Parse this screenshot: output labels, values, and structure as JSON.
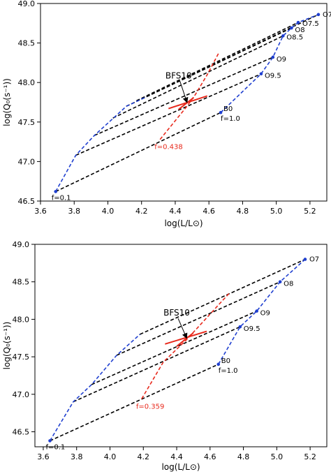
{
  "colors": {
    "blue_track": "#1f3fd0",
    "red_track": "#e8291c",
    "black_lines": "#000000",
    "red_label": "#e8291c"
  },
  "chart_data": [
    {
      "type": "line",
      "panel": "top",
      "xlabel": "log(L/L⊙)",
      "ylabel": "log(Q₀(s⁻¹))",
      "xlim": [
        3.6,
        5.3
      ],
      "ylim": [
        46.5,
        49.0
      ],
      "xticks": [
        "3.6",
        "3.8",
        "4.0",
        "4.2",
        "4.4",
        "4.6",
        "4.8",
        "5.0",
        "5.2"
      ],
      "yticks": [
        "46.5",
        "47.0",
        "47.5",
        "48.0",
        "48.5",
        "49.0"
      ],
      "series": [
        {
          "role": "f1_track",
          "color": "#1f3fd0",
          "points": [
            [
              4.67,
              47.62
            ],
            [
              4.91,
              48.11
            ],
            [
              4.98,
              48.32
            ],
            [
              5.04,
              48.59
            ],
            [
              5.09,
              48.69
            ],
            [
              5.13,
              48.76
            ],
            [
              5.25,
              48.86
            ]
          ]
        },
        {
          "role": "f01_track",
          "color": "#1f3fd0",
          "points": [
            [
              3.69,
              46.62
            ],
            [
              3.81,
              47.08
            ],
            [
              3.92,
              47.33
            ],
            [
              4.11,
              47.7
            ],
            [
              4.23,
              47.82
            ]
          ]
        },
        {
          "role": "f_best_track",
          "color": "#e8291c",
          "points": [
            [
              4.31,
              47.28
            ],
            [
              4.47,
              47.7
            ],
            [
              4.52,
              47.85
            ],
            [
              4.59,
              48.1
            ],
            [
              4.66,
              48.38
            ]
          ]
        },
        {
          "role": "iso_lines",
          "color": "#000000",
          "segments": [
            [
              [
                3.69,
                46.62
              ],
              [
                4.67,
                47.62
              ]
            ],
            [
              [
                3.81,
                47.08
              ],
              [
                4.91,
                48.11
              ]
            ],
            [
              [
                3.92,
                47.33
              ],
              [
                4.98,
                48.32
              ]
            ],
            [
              [
                4.03,
                47.55
              ],
              [
                5.04,
                48.59
              ]
            ],
            [
              [
                4.11,
                47.7
              ],
              [
                5.09,
                48.69
              ]
            ],
            [
              [
                4.17,
                47.77
              ],
              [
                5.13,
                48.76
              ]
            ],
            [
              [
                4.23,
                47.82
              ],
              [
                5.25,
                48.86
              ]
            ]
          ]
        }
      ],
      "error_bar": {
        "color": "#e8291c",
        "center": [
          4.47,
          47.73
        ],
        "segments": [
          [
            [
              4.36,
              47.67
            ],
            [
              4.59,
              47.83
            ]
          ],
          [
            [
              4.42,
              47.66
            ],
            [
              4.51,
              47.81
            ]
          ]
        ]
      },
      "point_labels": [
        {
          "text": "O7",
          "x": 5.25,
          "y": 48.86,
          "color": "#000000"
        },
        {
          "text": "O7.5",
          "x": 5.13,
          "y": 48.76,
          "color": "#000000"
        },
        {
          "text": "O8",
          "x": 5.09,
          "y": 48.69,
          "color": "#000000"
        },
        {
          "text": "O8.5",
          "x": 5.04,
          "y": 48.59,
          "color": "#000000"
        },
        {
          "text": "O9",
          "x": 4.98,
          "y": 48.32,
          "color": "#000000"
        },
        {
          "text": "O9.5",
          "x": 4.91,
          "y": 48.11,
          "color": "#000000"
        },
        {
          "text": "B0",
          "x": 4.67,
          "y": 47.62,
          "color": "#000000"
        },
        {
          "text": "f=1.0",
          "x": 4.67,
          "y": 47.62,
          "color": "#000000"
        },
        {
          "text": "f=0.438",
          "x": 4.31,
          "y": 47.28,
          "color": "#e8291c"
        },
        {
          "text": "f=0.1",
          "x": 3.69,
          "y": 46.62,
          "color": "#000000"
        }
      ],
      "annotation": {
        "text": "BFS10",
        "label_at": [
          4.42,
          48.05
        ],
        "arrow_to": [
          4.47,
          47.73
        ]
      }
    },
    {
      "type": "line",
      "panel": "bottom",
      "xlabel": "log(L/L⊙)",
      "ylabel": "log(Q₀(s⁻¹))",
      "xlim": [
        3.55,
        5.3
      ],
      "ylim": [
        46.3,
        49.0
      ],
      "xticks": [
        "3.6",
        "3.8",
        "4.0",
        "4.2",
        "4.4",
        "4.6",
        "4.8",
        "5.0",
        "5.2"
      ],
      "yticks": [
        "46.5",
        "47.0",
        "47.5",
        "48.0",
        "48.5",
        "49.0"
      ],
      "series": [
        {
          "role": "f1_track",
          "color": "#1f3fd0",
          "points": [
            [
              4.65,
              47.4
            ],
            [
              4.78,
              47.9
            ],
            [
              4.88,
              48.11
            ],
            [
              5.02,
              48.5
            ],
            [
              5.17,
              48.8
            ]
          ]
        },
        {
          "role": "f01_track",
          "color": "#1f3fd0",
          "points": [
            [
              3.64,
              46.38
            ],
            [
              3.78,
              46.9
            ],
            [
              3.89,
              47.13
            ],
            [
              4.04,
              47.52
            ],
            [
              4.18,
              47.8
            ]
          ]
        },
        {
          "role": "f_best_track",
          "color": "#e8291c",
          "points": [
            [
              4.19,
              46.94
            ],
            [
              4.32,
              47.43
            ],
            [
              4.46,
              47.73
            ],
            [
              4.72,
              48.36
            ]
          ]
        },
        {
          "role": "iso_lines",
          "color": "#000000",
          "segments": [
            [
              [
                3.64,
                46.38
              ],
              [
                4.65,
                47.4
              ]
            ],
            [
              [
                3.78,
                46.9
              ],
              [
                4.78,
                47.9
              ]
            ],
            [
              [
                3.89,
                47.13
              ],
              [
                4.88,
                48.11
              ]
            ],
            [
              [
                4.04,
                47.52
              ],
              [
                5.02,
                48.5
              ]
            ],
            [
              [
                4.18,
                47.8
              ],
              [
                5.17,
                48.8
              ]
            ]
          ]
        }
      ],
      "error_bar": {
        "color": "#e8291c",
        "center": [
          4.46,
          47.73
        ],
        "segments": [
          [
            [
              4.33,
              47.67
            ],
            [
              4.58,
              47.84
            ]
          ],
          [
            [
              4.4,
              47.64
            ],
            [
              4.5,
              47.82
            ]
          ]
        ]
      },
      "point_labels": [
        {
          "text": "O7",
          "x": 5.17,
          "y": 48.8,
          "color": "#000000"
        },
        {
          "text": "O8",
          "x": 5.02,
          "y": 48.5,
          "color": "#000000"
        },
        {
          "text": "O9",
          "x": 4.88,
          "y": 48.11,
          "color": "#000000"
        },
        {
          "text": "O9.5",
          "x": 4.78,
          "y": 47.9,
          "color": "#000000"
        },
        {
          "text": "B0",
          "x": 4.65,
          "y": 47.4,
          "color": "#000000"
        },
        {
          "text": "f=1.0",
          "x": 4.65,
          "y": 47.4,
          "color": "#000000"
        },
        {
          "text": "f=0.359",
          "x": 4.19,
          "y": 46.94,
          "color": "#e8291c"
        },
        {
          "text": "f=0.1",
          "x": 3.64,
          "y": 46.38,
          "color": "#000000"
        }
      ],
      "annotation": {
        "text": "BFS10",
        "label_at": [
          4.4,
          48.05
        ],
        "arrow_to": [
          4.46,
          47.73
        ]
      }
    }
  ]
}
